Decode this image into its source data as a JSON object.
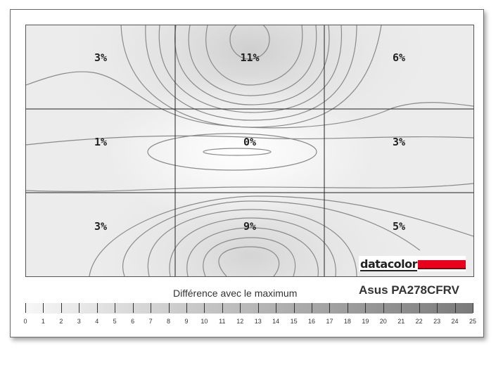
{
  "chart_data": {
    "type": "heatmap",
    "title": "Asus PA278CFRV",
    "subtitle": "Différence avec le maximum",
    "grid": {
      "rows": 3,
      "cols": 3
    },
    "cells": [
      [
        {
          "value": 3,
          "label": "3%"
        },
        {
          "value": 11,
          "label": "11%"
        },
        {
          "value": 6,
          "label": "6%"
        }
      ],
      [
        {
          "value": 1,
          "label": "1%"
        },
        {
          "value": 0,
          "label": "0%"
        },
        {
          "value": 3,
          "label": "3%"
        }
      ],
      [
        {
          "value": 3,
          "label": "3%"
        },
        {
          "value": 9,
          "label": "9%"
        },
        {
          "value": 5,
          "label": "5%"
        }
      ]
    ],
    "scale": {
      "label": "Différence avec le maximum",
      "min": 0,
      "max": 25,
      "ticks": [
        0,
        1,
        2,
        3,
        4,
        5,
        6,
        7,
        8,
        9,
        10,
        11,
        12,
        13,
        14,
        15,
        16,
        17,
        18,
        19,
        20,
        21,
        22,
        23,
        24,
        25
      ],
      "color_low": "#f7f7f7",
      "color_high": "#7a7a7a"
    },
    "contours": true
  },
  "branding": {
    "logo_text": "datacolor",
    "logo_color": "#e8001c"
  },
  "model": "Asus PA278CFRV",
  "scale_title": "Différence avec le maximum"
}
